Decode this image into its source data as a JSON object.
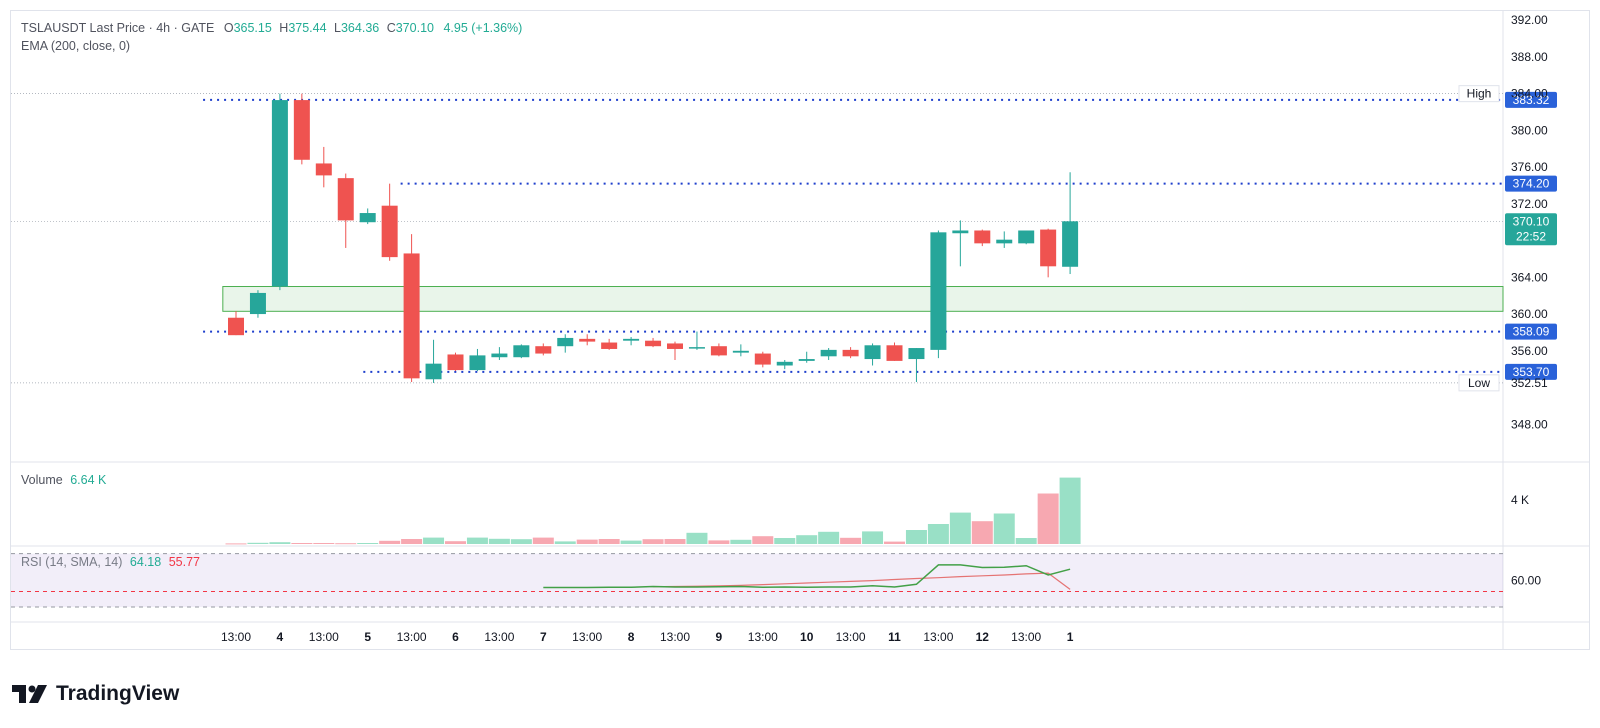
{
  "colors": {
    "up": "#26a69a",
    "down": "#ef5350",
    "upVol": "#99e0c6",
    "downVol": "#f7a8b1",
    "line": "#1e3fcc",
    "zone": "#4caf50",
    "ema": "#43a047",
    "rsiAvg": "#e57373"
  },
  "legend": {
    "symbol": "TSLAUSDT Last Price · 4h · GATE",
    "o_label": "O",
    "o_value": "365.15",
    "h_label": "H",
    "h_value": "375.44",
    "l_label": "L",
    "l_value": "364.36",
    "c_label": "C",
    "c_value": "370.10",
    "change": "4.95 (+1.36%)",
    "ema": "EMA (200, close, 0)"
  },
  "volume_legend": {
    "label": "Volume",
    "value": "6.64 K"
  },
  "rsi_legend": {
    "label": "RSI (14, SMA, 14)",
    "value1": "64.18",
    "value2": "55.77"
  },
  "brand": "TradingView",
  "chart_data": {
    "type": "candlestick",
    "price_ticks": [
      392,
      388,
      384,
      380,
      376,
      372,
      368,
      364,
      360,
      356,
      352,
      348
    ],
    "price_tick_labels": [
      "392.00",
      "388.00",
      "",
      "380.00",
      "376.00",
      "372.00",
      "",
      "364.00",
      "360.00",
      "356.00",
      "",
      "348.00"
    ],
    "ylim": [
      344,
      393
    ],
    "x_labels": [
      "13:00",
      "4",
      "13:00",
      "5",
      "13:00",
      "6",
      "13:00",
      "7",
      "13:00",
      "8",
      "13:00",
      "9",
      "13:00",
      "10",
      "13:00",
      "11",
      "13:00",
      "12",
      "13:00",
      "1"
    ],
    "x_label_index": [
      0,
      2,
      4,
      6,
      8,
      10,
      12,
      14,
      16,
      18,
      20,
      22,
      24,
      26,
      28,
      30,
      32,
      34,
      36,
      38
    ],
    "candles": [
      {
        "o": 359.6,
        "h": 360.3,
        "l": 357.7,
        "c": 357.7
      },
      {
        "o": 360.0,
        "h": 362.6,
        "l": 359.6,
        "c": 362.3
      },
      {
        "o": 363.0,
        "h": 384.0,
        "l": 362.6,
        "c": 383.3
      },
      {
        "o": 383.3,
        "h": 384.0,
        "l": 376.3,
        "c": 376.8
      },
      {
        "o": 376.4,
        "h": 378.2,
        "l": 373.8,
        "c": 375.1
      },
      {
        "o": 374.8,
        "h": 375.3,
        "l": 367.2,
        "c": 370.2
      },
      {
        "o": 370.0,
        "h": 371.5,
        "l": 369.8,
        "c": 371.0
      },
      {
        "o": 371.8,
        "h": 374.2,
        "l": 365.8,
        "c": 366.2
      },
      {
        "o": 366.6,
        "h": 368.7,
        "l": 352.6,
        "c": 353.0
      },
      {
        "o": 352.9,
        "h": 357.2,
        "l": 352.5,
        "c": 354.6
      },
      {
        "o": 355.6,
        "h": 355.8,
        "l": 353.8,
        "c": 353.9
      },
      {
        "o": 353.9,
        "h": 356.2,
        "l": 353.8,
        "c": 355.5
      },
      {
        "o": 355.3,
        "h": 356.4,
        "l": 355.0,
        "c": 355.7
      },
      {
        "o": 355.3,
        "h": 356.7,
        "l": 355.2,
        "c": 356.6
      },
      {
        "o": 356.5,
        "h": 356.8,
        "l": 355.5,
        "c": 355.7
      },
      {
        "o": 356.5,
        "h": 357.8,
        "l": 355.8,
        "c": 357.4
      },
      {
        "o": 357.3,
        "h": 357.8,
        "l": 356.6,
        "c": 357.0
      },
      {
        "o": 356.9,
        "h": 357.3,
        "l": 356.1,
        "c": 356.2
      },
      {
        "o": 357.1,
        "h": 357.5,
        "l": 356.6,
        "c": 357.3
      },
      {
        "o": 357.1,
        "h": 357.4,
        "l": 356.4,
        "c": 356.5
      },
      {
        "o": 356.8,
        "h": 357.0,
        "l": 355.0,
        "c": 356.2
      },
      {
        "o": 356.3,
        "h": 358.1,
        "l": 356.1,
        "c": 356.4
      },
      {
        "o": 356.5,
        "h": 356.8,
        "l": 355.4,
        "c": 355.5
      },
      {
        "o": 355.8,
        "h": 356.7,
        "l": 355.4,
        "c": 356.0
      },
      {
        "o": 355.7,
        "h": 355.9,
        "l": 354.2,
        "c": 354.5
      },
      {
        "o": 354.4,
        "h": 355.0,
        "l": 354.0,
        "c": 354.8
      },
      {
        "o": 354.9,
        "h": 355.9,
        "l": 354.7,
        "c": 355.1
      },
      {
        "o": 355.4,
        "h": 356.3,
        "l": 355.0,
        "c": 356.1
      },
      {
        "o": 356.1,
        "h": 356.4,
        "l": 355.2,
        "c": 355.4
      },
      {
        "o": 355.1,
        "h": 356.8,
        "l": 354.4,
        "c": 356.6
      },
      {
        "o": 356.6,
        "h": 356.9,
        "l": 354.9,
        "c": 354.9
      },
      {
        "o": 355.1,
        "h": 356.3,
        "l": 352.6,
        "c": 356.3
      },
      {
        "o": 356.1,
        "h": 369.1,
        "l": 355.2,
        "c": 368.9
      },
      {
        "o": 368.8,
        "h": 370.2,
        "l": 365.2,
        "c": 369.1
      },
      {
        "o": 369.1,
        "h": 369.2,
        "l": 367.4,
        "c": 367.7
      },
      {
        "o": 367.7,
        "h": 369.0,
        "l": 367.2,
        "c": 368.1
      },
      {
        "o": 367.7,
        "h": 369.1,
        "l": 367.6,
        "c": 369.1
      },
      {
        "o": 369.2,
        "h": 369.3,
        "l": 364.0,
        "c": 365.2
      },
      {
        "o": 365.15,
        "h": 375.44,
        "l": 364.36,
        "c": 370.1
      }
    ],
    "volumes": [
      0.06,
      0.12,
      0.18,
      0.1,
      0.1,
      0.08,
      0.1,
      0.32,
      0.5,
      0.64,
      0.28,
      0.64,
      0.52,
      0.48,
      0.64,
      0.26,
      0.44,
      0.5,
      0.34,
      0.48,
      0.5,
      1.12,
      0.36,
      0.42,
      0.78,
      0.6,
      0.88,
      1.22,
      0.62,
      1.26,
      0.24,
      1.4,
      2.0,
      3.14,
      2.28,
      3.05,
      0.6,
      5.05,
      6.64
    ],
    "volume_ylim": [
      0,
      7.8
    ],
    "volume_tick": "4 K",
    "rsi_ema": [
      57.4,
      57.5,
      57.5,
      57.5,
      57.5,
      57.5,
      57.5,
      57.4,
      57.3,
      57.4,
      57.3,
      57.2,
      57.3,
      57.3,
      57.3,
      57.3,
      57.3,
      57.4,
      57.4,
      57.7,
      57.5,
      57.5,
      57.6,
      57.7,
      57.4,
      57.5,
      57.4,
      57.5,
      57.5,
      58.0,
      57.5,
      58.5,
      65.8,
      65.8,
      64.8,
      64.9,
      65.5,
      62.0,
      64.18
    ],
    "rsi_avg": [
      57.6,
      57.7,
      57.8,
      57.9,
      58.1,
      58.4,
      58.7,
      59.0,
      59.3,
      59.6,
      59.9,
      60.3,
      60.7,
      61.0,
      61.4,
      61.7,
      62.0,
      62.4,
      62.7,
      55.77
    ],
    "rsi_tick": "60.00",
    "rsi_bands": [
      70,
      50
    ],
    "rsi_mid": 55.8,
    "rsi_ylim": [
      47,
      71
    ],
    "hlines": [
      {
        "value": 383.32,
        "label": "383.32",
        "from": -1.5
      },
      {
        "value": 374.2,
        "label": "374.20",
        "from": 7.5
      },
      {
        "value": 358.09,
        "label": "358.09",
        "from": -1.5
      },
      {
        "value": 353.7,
        "label": "353.70",
        "from": 5.8
      }
    ],
    "zone": {
      "top": 363.0,
      "bottom": 360.3,
      "from": -0.6
    },
    "high": {
      "label": "High",
      "value": "384.00",
      "price": 384
    },
    "low": {
      "label": "Low",
      "value": "352.51",
      "price": 352.51
    },
    "last": {
      "value": "370.10",
      "countdown": "22:52",
      "price": 370.1
    },
    "dotted_refs": [
      384,
      352.51,
      370.1
    ]
  }
}
